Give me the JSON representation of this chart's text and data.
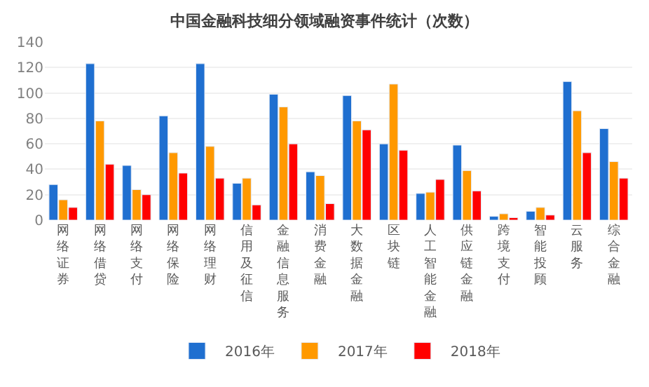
{
  "chart_data": {
    "type": "bar",
    "title": "中国金融科技细分领域融资事件统计（次数）",
    "categories": [
      "网络证券",
      "网络借贷",
      "网络支付",
      "网络保险",
      "网络理财",
      "信用及征信",
      "金融信息服务",
      "消费金融",
      "大数据金融",
      "区块链",
      "人工智能金融",
      "供应链金融",
      "跨境支付",
      "智能投顾",
      "云服务",
      "综合金融"
    ],
    "series": [
      {
        "name": "2016年",
        "color": "#1f6fd0",
        "values": [
          28,
          123,
          43,
          82,
          123,
          29,
          99,
          38,
          98,
          60,
          21,
          59,
          3,
          7,
          109,
          72
        ]
      },
      {
        "name": "2017年",
        "color": "#ff9900",
        "values": [
          16,
          78,
          24,
          53,
          58,
          33,
          89,
          35,
          78,
          107,
          22,
          39,
          5,
          10,
          86,
          46
        ]
      },
      {
        "name": "2018年",
        "color": "#ff0000",
        "values": [
          10,
          44,
          20,
          37,
          33,
          12,
          60,
          13,
          71,
          55,
          32,
          23,
          2,
          4,
          53,
          33
        ]
      }
    ],
    "ylim": [
      0,
      140
    ],
    "yticks": [
      0,
      20,
      40,
      60,
      80,
      100,
      120,
      140
    ],
    "grid": "y",
    "legend": "bottom"
  }
}
